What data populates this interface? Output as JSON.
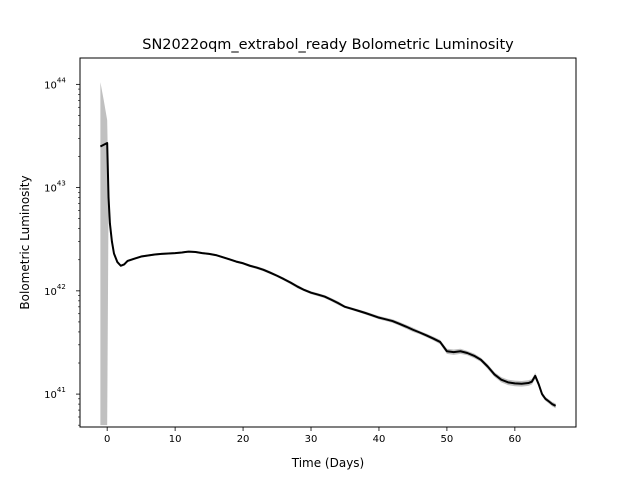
{
  "chart_data": {
    "type": "line",
    "title": "SN2022oqm_extrabol_ready Bolometric Luminosity",
    "xlabel": "Time (Days)",
    "ylabel": "Bolometric Luminosity",
    "y_scale": "log",
    "xlim": [
      -4,
      69
    ],
    "ylim": [
      4.8e+40,
      1.8e+44
    ],
    "x_ticks": [
      0,
      10,
      20,
      30,
      40,
      50,
      60
    ],
    "y_ticks": [
      {
        "value": 1e+41,
        "base": "10",
        "exp": "41"
      },
      {
        "value": 1e+42,
        "base": "10",
        "exp": "42"
      },
      {
        "value": 1e+43,
        "base": "10",
        "exp": "43"
      },
      {
        "value": 1e+44,
        "base": "10",
        "exp": "44"
      }
    ],
    "grid": false,
    "line_color": "#000000",
    "band_color": "#c0c0c0",
    "series": [
      {
        "x": [
          -1.0,
          -0.5,
          0.0,
          0.2,
          0.4,
          0.7,
          1.0,
          1.5,
          2.0,
          2.5,
          3.0,
          4.0,
          5.0,
          6.0,
          7.0,
          8.0,
          9.0,
          10.0,
          11.0,
          11.5,
          12.0,
          13.0,
          14.0,
          15.0,
          16.0,
          17.0,
          18.0,
          19.0,
          20.0,
          21.0,
          22.0,
          23.0,
          24.0,
          25.0,
          26.0,
          27.0,
          28.0,
          29.0,
          30.0,
          31.0,
          32.0,
          33.0,
          34.0,
          35.0,
          36.0,
          37.0,
          38.0,
          39.0,
          40.0,
          41.0,
          42.0,
          43.0,
          44.0,
          45.0,
          46.0,
          47.0,
          48.0,
          49.0,
          50.0,
          51.0,
          52.0,
          53.0,
          54.0,
          55.0,
          56.0,
          57.0,
          58.0,
          59.0,
          60.0,
          61.0,
          62.0,
          62.5,
          63.0,
          63.5,
          64.0,
          64.5,
          65.0,
          65.5,
          66.0
        ],
        "y": [
          2.5e+43,
          2.6e+43,
          2.7e+43,
          8e+42,
          4.5e+42,
          3e+42,
          2.3e+42,
          1.9e+42,
          1.75e+42,
          1.8e+42,
          1.95e+42,
          2.05e+42,
          2.15e+42,
          2.2e+42,
          2.25e+42,
          2.28e+42,
          2.3e+42,
          2.32e+42,
          2.35e+42,
          2.38e+42,
          2.4e+42,
          2.38e+42,
          2.32e+42,
          2.28e+42,
          2.22e+42,
          2.12e+42,
          2.02e+42,
          1.92e+42,
          1.85e+42,
          1.75e+42,
          1.68e+42,
          1.6e+42,
          1.5e+42,
          1.4e+42,
          1.3e+42,
          1.2e+42,
          1.1e+42,
          1.02e+42,
          9.6e+41,
          9.2e+41,
          8.8e+41,
          8.2e+41,
          7.6e+41,
          7e+41,
          6.7e+41,
          6.4e+41,
          6.1e+41,
          5.8e+41,
          5.5e+41,
          5.3e+41,
          5.1e+41,
          4.8e+41,
          4.5e+41,
          4.2e+41,
          3.95e+41,
          3.7e+41,
          3.45e+41,
          3.2e+41,
          2.6e+41,
          2.55e+41,
          2.6e+41,
          2.5e+41,
          2.35e+41,
          2.15e+41,
          1.85e+41,
          1.55e+41,
          1.38e+41,
          1.3e+41,
          1.27e+41,
          1.26e+41,
          1.28e+41,
          1.32e+41,
          1.5e+41,
          1.25e+41,
          1e+41,
          9e+40,
          8.5e+40,
          8e+40,
          7.7e+40
        ],
        "y_lower": [
          5e+40,
          5e+40,
          5e+40,
          7e+42,
          4.2e+42,
          2.8e+42,
          2.2e+42,
          1.85e+42,
          1.7e+42,
          1.75e+42,
          1.9e+42,
          2e+42,
          2.1e+42,
          2.15e+42,
          2.2e+42,
          2.23e+42,
          2.25e+42,
          2.27e+42,
          2.3e+42,
          2.33e+42,
          2.35e+42,
          2.33e+42,
          2.27e+42,
          2.23e+42,
          2.17e+42,
          2.07e+42,
          1.97e+42,
          1.87e+42,
          1.8e+42,
          1.7e+42,
          1.63e+42,
          1.55e+42,
          1.45e+42,
          1.36e+42,
          1.26e+42,
          1.16e+42,
          1.06e+42,
          9.9e+41,
          9.3e+41,
          8.9e+41,
          8.5e+41,
          7.9e+41,
          7.3e+41,
          6.8e+41,
          6.5e+41,
          6.2e+41,
          5.9e+41,
          5.6e+41,
          5.3e+41,
          5.1e+41,
          4.9e+41,
          4.6e+41,
          4.3e+41,
          4e+41,
          3.8e+41,
          3.55e+41,
          3.3e+41,
          3.05e+41,
          2.45e+41,
          2.4e+41,
          2.45e+41,
          2.38e+41,
          2.23e+41,
          2.05e+41,
          1.75e+41,
          1.47e+41,
          1.3e+41,
          1.22e+41,
          1.19e+41,
          1.18e+41,
          1.2e+41,
          1.24e+41,
          1.4e+41,
          1.18e+41,
          9.5e+40,
          8.6e+40,
          8.1e+40,
          7.6e+40,
          7.3e+40
        ],
        "y_upper": [
          1.05e+44,
          7e+43,
          4.5e+43,
          9e+42,
          4.9e+42,
          3.2e+42,
          2.4e+42,
          1.95e+42,
          1.8e+42,
          1.85e+42,
          2e+42,
          2.1e+42,
          2.2e+42,
          2.25e+42,
          2.3e+42,
          2.33e+42,
          2.35e+42,
          2.37e+42,
          2.4e+42,
          2.43e+42,
          2.45e+42,
          2.43e+42,
          2.37e+42,
          2.33e+42,
          2.27e+42,
          2.17e+42,
          2.07e+42,
          1.97e+42,
          1.9e+42,
          1.8e+42,
          1.73e+42,
          1.65e+42,
          1.55e+42,
          1.44e+42,
          1.34e+42,
          1.24e+42,
          1.14e+42,
          1.05e+42,
          9.9e+41,
          9.5e+41,
          9.1e+41,
          8.5e+41,
          7.9e+41,
          7.2e+41,
          6.9e+41,
          6.6e+41,
          6.3e+41,
          6e+41,
          5.7e+41,
          5.5e+41,
          5.3e+41,
          5e+41,
          4.7e+41,
          4.4e+41,
          4.1e+41,
          3.85e+41,
          3.6e+41,
          3.35e+41,
          2.75e+41,
          2.7e+41,
          2.75e+41,
          2.62e+41,
          2.47e+41,
          2.25e+41,
          1.95e+41,
          1.63e+41,
          1.46e+41,
          1.38e+41,
          1.35e+41,
          1.34e+41,
          1.36e+41,
          1.4e+41,
          1.6e+41,
          1.32e+41,
          1.05e+41,
          9.4e+40,
          8.9e+40,
          8.4e+40,
          8.1e+40
        ]
      }
    ]
  }
}
